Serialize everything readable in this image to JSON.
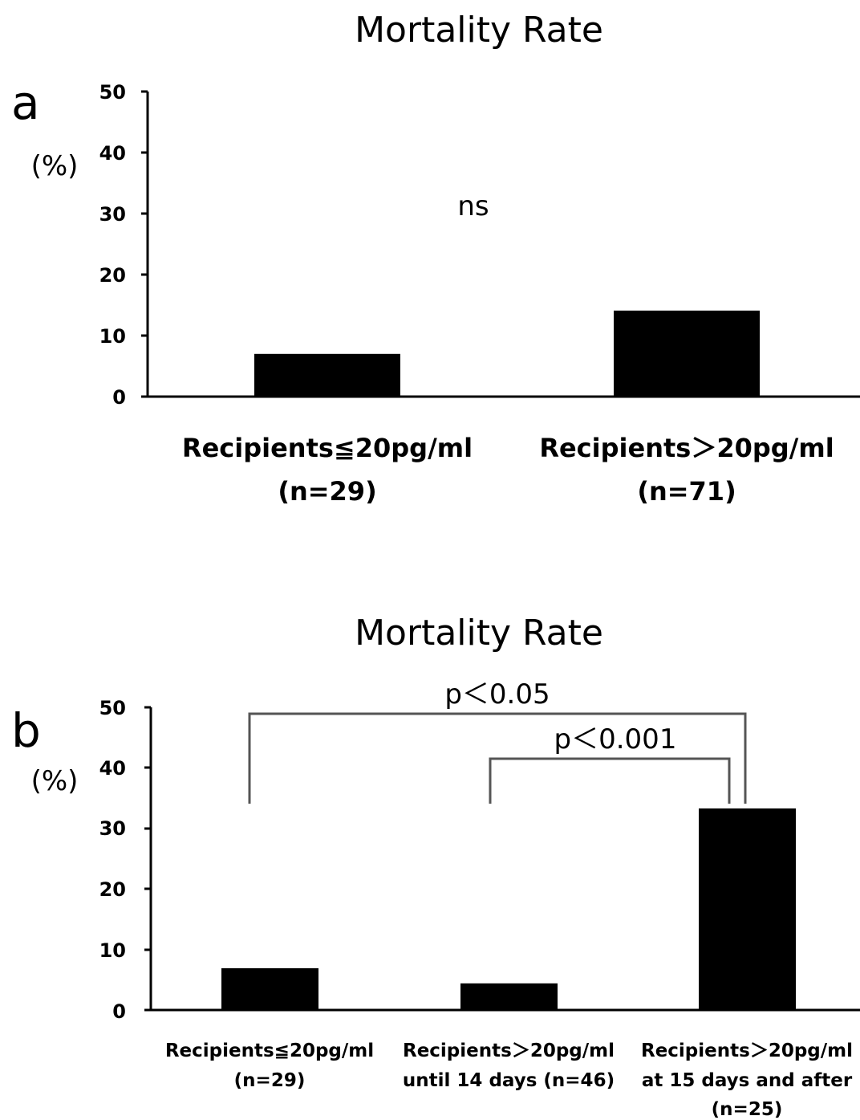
{
  "chart_data": [
    {
      "type": "bar",
      "panel": "a",
      "title": "Mortality Rate",
      "ylabel": "(%)",
      "ylim": [
        0,
        50
      ],
      "yticks": [
        "0",
        "10",
        "20",
        "30",
        "40",
        "50"
      ],
      "categories": [
        [
          "Recipients≦20pg/ml",
          "(n=29)"
        ],
        [
          "Recipients＞20pg/ml",
          "(n=71)"
        ]
      ],
      "values": [
        7,
        14.1
      ],
      "annotation": "ns",
      "bar_color": "#000000"
    },
    {
      "type": "bar",
      "panel": "b",
      "title": "Mortality Rate",
      "ylabel": "(%)",
      "ylim": [
        0,
        50
      ],
      "yticks": [
        "0",
        "10",
        "20",
        "30",
        "40",
        "50"
      ],
      "categories": [
        [
          "Recipients≦20pg/ml",
          "(n=29)"
        ],
        [
          "Recipients＞20pg/ml",
          "until 14 days (n=46)"
        ],
        [
          "Recipients＞20pg/ml",
          "at 15 days and after",
          "(n=25)"
        ]
      ],
      "values": [
        6.9,
        4.4,
        33.3
      ],
      "brackets": [
        {
          "from": 0,
          "to": 2,
          "label": "p＜0.05"
        },
        {
          "from": 1,
          "to": 2,
          "label": "p＜0.001"
        }
      ],
      "bar_color": "#000000"
    }
  ]
}
